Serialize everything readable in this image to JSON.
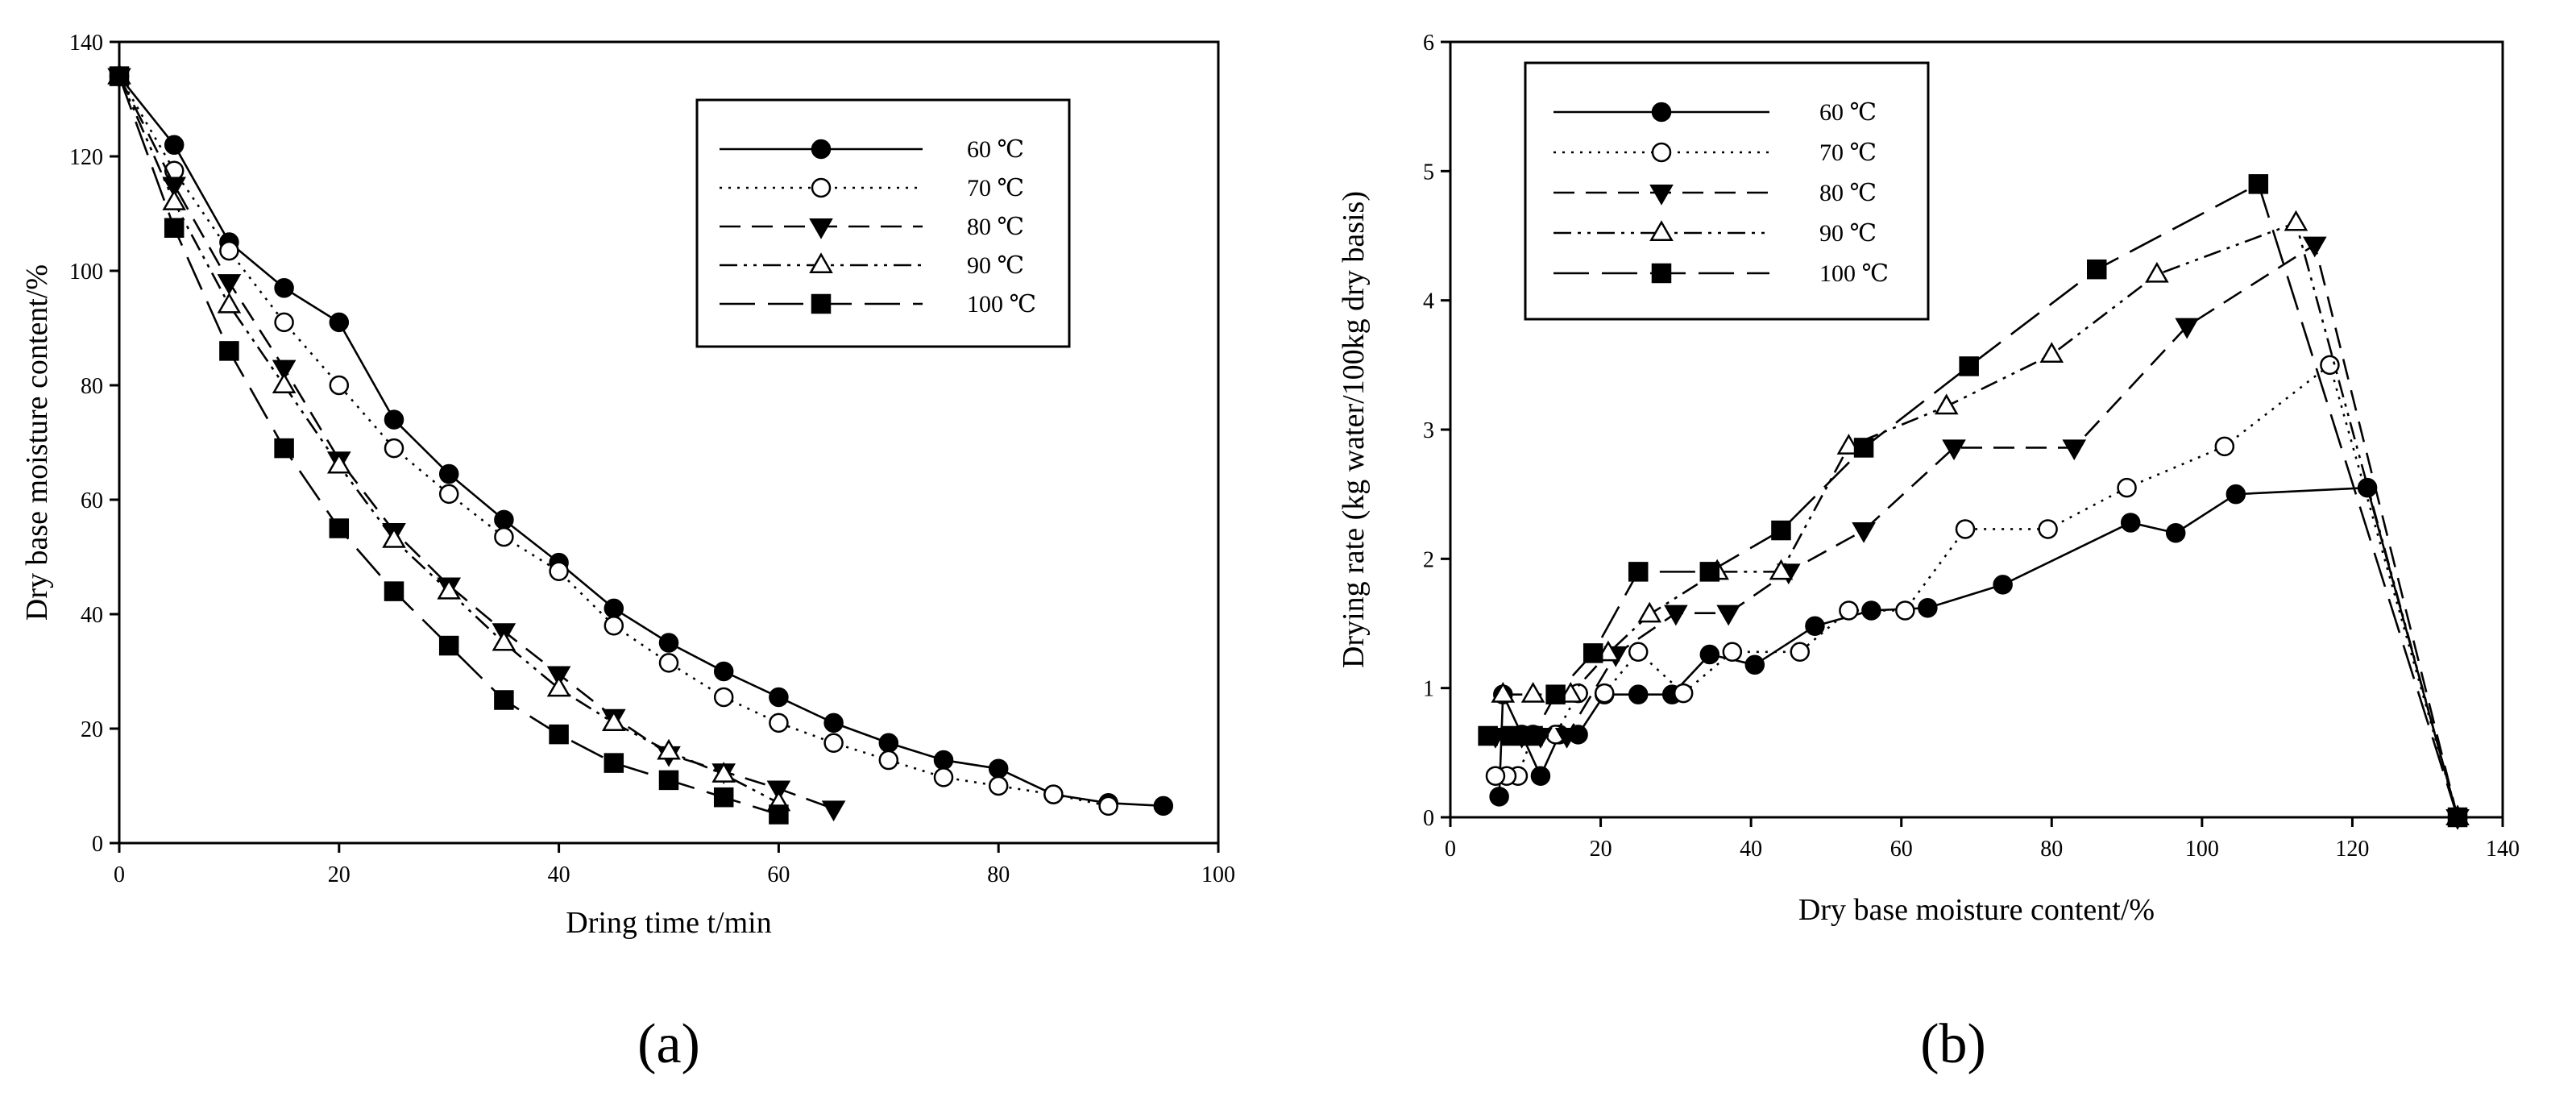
{
  "chart_data": [
    {
      "type": "line",
      "panel_label": "(a)",
      "xlabel": "Dring time t/min",
      "ylabel": "Dry base moisture content/%",
      "xlim": [
        0,
        100
      ],
      "ylim": [
        0,
        140
      ],
      "xticks": [
        0,
        20,
        40,
        60,
        80,
        100
      ],
      "yticks": [
        0,
        20,
        40,
        60,
        80,
        100,
        120,
        140
      ],
      "grid": false,
      "legend_position": "top-right",
      "series": [
        {
          "name": "60 ℃",
          "marker": "filled-circle",
          "dash": "solid",
          "x": [
            0,
            5,
            10,
            15,
            20,
            25,
            30,
            35,
            40,
            45,
            50,
            55,
            60,
            65,
            70,
            75,
            80,
            85,
            90,
            95
          ],
          "y": [
            134,
            122,
            105,
            97,
            91,
            74,
            64.5,
            56.5,
            49,
            41,
            35,
            30,
            25.5,
            21,
            17.5,
            14.5,
            13,
            8.5,
            7,
            6.5
          ]
        },
        {
          "name": "70 ℃",
          "marker": "open-circle",
          "dash": "dotted",
          "x": [
            0,
            5,
            10,
            15,
            20,
            25,
            30,
            35,
            40,
            45,
            50,
            55,
            60,
            65,
            70,
            75,
            80,
            85,
            90
          ],
          "y": [
            134,
            117.5,
            103.5,
            91,
            80,
            69,
            61,
            53.5,
            47.5,
            38,
            31.5,
            25.5,
            21,
            17.5,
            14.5,
            11.5,
            10,
            8.5,
            6.5
          ]
        },
        {
          "name": "80 ℃",
          "marker": "filled-triangle-down",
          "dash": "dashed",
          "x": [
            0,
            5,
            10,
            15,
            20,
            25,
            30,
            35,
            40,
            45,
            50,
            55,
            60,
            65
          ],
          "y": [
            134,
            115,
            98,
            83,
            67,
            54.5,
            45,
            37,
            29.5,
            22,
            15.5,
            12.5,
            9.5,
            6
          ]
        },
        {
          "name": "90 ℃",
          "marker": "open-triangle-up",
          "dash": "dash-dot-dot",
          "x": [
            0,
            5,
            10,
            15,
            20,
            25,
            30,
            35,
            40,
            45,
            50,
            55,
            60
          ],
          "y": [
            134,
            112,
            94,
            80,
            66,
            53,
            44,
            35,
            27,
            21,
            16,
            12,
            7
          ]
        },
        {
          "name": "100 ℃",
          "marker": "filled-square",
          "dash": "long-dash",
          "x": [
            0,
            5,
            10,
            15,
            20,
            25,
            30,
            35,
            40,
            45,
            50,
            55,
            60
          ],
          "y": [
            134,
            107.5,
            86,
            69,
            55,
            44,
            34.5,
            25,
            19,
            14,
            11,
            8,
            5
          ]
        }
      ]
    },
    {
      "type": "line",
      "panel_label": "(b)",
      "xlabel": "Dry base moisture content/%",
      "ylabel": "Drying rate  (kg water/100kg dry basis)",
      "xlim": [
        0,
        140
      ],
      "ylim": [
        0,
        6
      ],
      "xticks": [
        0,
        20,
        40,
        60,
        80,
        100,
        120,
        140
      ],
      "yticks": [
        0,
        1,
        2,
        3,
        4,
        5,
        6
      ],
      "grid": false,
      "legend_position": "top-left",
      "series": [
        {
          "name": "60 ℃",
          "marker": "filled-circle",
          "dash": "solid",
          "x": [
            134,
            122,
            104.5,
            96.5,
            90.5,
            73.5,
            63.5,
            56,
            48.5,
            40.5,
            34.5,
            29.5,
            25,
            20.5,
            17,
            14.5,
            12,
            9.5,
            7,
            6.5
          ],
          "y": [
            0,
            2.55,
            2.5,
            2.2,
            2.28,
            1.8,
            1.62,
            1.6,
            1.48,
            1.18,
            1.26,
            0.95,
            0.95,
            0.95,
            0.64,
            0.64,
            0.32,
            0.64,
            0.95,
            0.16
          ]
        },
        {
          "name": "70 ℃",
          "marker": "open-circle",
          "dash": "dotted",
          "x": [
            134,
            117,
            103,
            90,
            79.5,
            68.5,
            60.5,
            53,
            46.5,
            37.5,
            31,
            25,
            20.5,
            17,
            14,
            11,
            9,
            7.5,
            6
          ],
          "y": [
            0,
            3.5,
            2.87,
            2.55,
            2.23,
            2.23,
            1.6,
            1.6,
            1.28,
            1.28,
            0.96,
            1.28,
            0.96,
            0.96,
            0.64,
            0.64,
            0.32,
            0.32,
            0.32
          ]
        },
        {
          "name": "80 ℃",
          "marker": "filled-triangle-down",
          "dash": "dashed",
          "x": [
            134,
            115,
            98,
            83,
            67,
            55,
            45,
            37,
            30,
            22,
            15.5,
            12,
            9.5,
            6
          ],
          "y": [
            0,
            4.43,
            3.8,
            2.86,
            2.86,
            2.22,
            1.9,
            1.58,
            1.58,
            1.26,
            0.63,
            0.63,
            0.63,
            0.63
          ]
        },
        {
          "name": "90 ℃",
          "marker": "open-triangle-up",
          "dash": "dash-dot-dot",
          "x": [
            134,
            112.5,
            94,
            80,
            66,
            53,
            44,
            35.5,
            26.5,
            21,
            16,
            11,
            7
          ],
          "y": [
            0,
            4.6,
            4.2,
            3.58,
            3.18,
            2.87,
            1.9,
            1.9,
            1.57,
            1.27,
            0.95,
            0.95,
            0.95
          ]
        },
        {
          "name": "100 ℃",
          "marker": "filled-square",
          "dash": "long-dash",
          "x": [
            134,
            107.5,
            86,
            69,
            55,
            44,
            34.5,
            25,
            19,
            14,
            11,
            8,
            5
          ],
          "y": [
            0,
            4.9,
            4.24,
            3.49,
            2.86,
            2.22,
            1.9,
            1.9,
            1.27,
            0.95,
            0.63,
            0.63,
            0.63
          ]
        }
      ]
    }
  ]
}
